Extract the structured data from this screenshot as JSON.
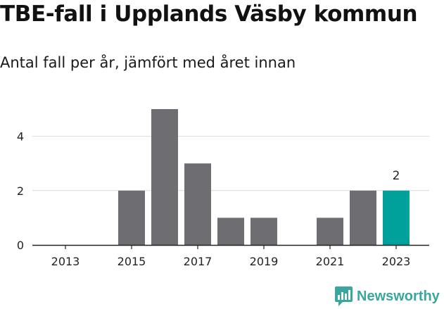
{
  "header": {
    "title": "TBE-fall i Upplands Väsby kommun",
    "subtitle": "Antal fall per år, jämfört med året innan"
  },
  "brand": {
    "name": "Newsworthy",
    "icon": "newsworthy-logo-icon",
    "color": "#3aa69d"
  },
  "colors": {
    "bar": "#6e6d72",
    "highlight": "#00a19a",
    "grid": "#d9d9d9",
    "axis": "#222222"
  },
  "chart_data": {
    "type": "bar",
    "categories": [
      "2013",
      "2014",
      "2015",
      "2016",
      "2017",
      "2018",
      "2019",
      "2020",
      "2021",
      "2022",
      "2023"
    ],
    "values": [
      0,
      0,
      2,
      5,
      3,
      1,
      1,
      0,
      1,
      2,
      2
    ],
    "highlight_index": 10,
    "data_labels": [
      {
        "index": 10,
        "text": "2"
      }
    ],
    "x_tick_labels": [
      "2013",
      "2015",
      "2017",
      "2019",
      "2021",
      "2023"
    ],
    "y_ticks": [
      0,
      2,
      4
    ],
    "ylim": [
      0,
      5
    ],
    "grid": true,
    "legend": "none"
  }
}
